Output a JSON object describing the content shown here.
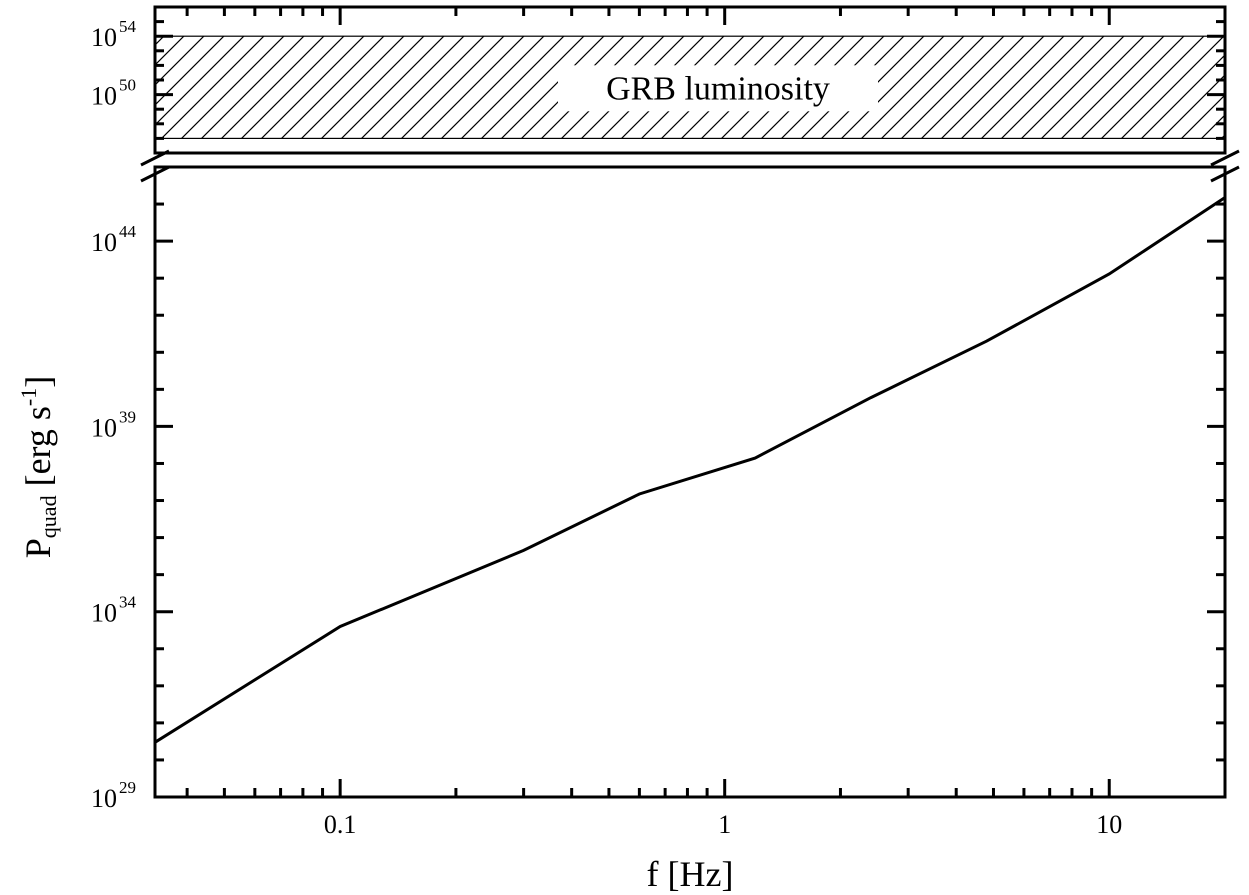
{
  "chart_data": {
    "type": "line",
    "xlabel": "f [Hz]",
    "ylabel": {
      "main": "P",
      "sub": "quad",
      "unit_pre": "[erg s",
      "unit_sup": "-1",
      "unit_post": "]"
    },
    "x_scale": "log",
    "y_scale": "log",
    "xlim": [
      0.033,
      20
    ],
    "ylim_lower_panel": [
      1e+29,
      1e+46
    ],
    "ylim_upper_panel": [
      1e+46,
      1e+56
    ],
    "grid": false,
    "broken_y_axis": true,
    "x_ticks": [
      {
        "value": 0.1,
        "label": "0.1"
      },
      {
        "value": 1,
        "label": "1"
      },
      {
        "value": 10,
        "label": "10"
      }
    ],
    "y_ticks_lower": [
      {
        "value": 1e+29,
        "base": "10",
        "exp": "29"
      },
      {
        "value": 1e+34,
        "base": "10",
        "exp": "34"
      },
      {
        "value": 1e+39,
        "base": "10",
        "exp": "39"
      },
      {
        "value": 1e+44,
        "base": "10",
        "exp": "44"
      }
    ],
    "y_ticks_upper": [
      {
        "value": 1e+50,
        "base": "10",
        "exp": "50"
      },
      {
        "value": 1e+54,
        "base": "10",
        "exp": "54"
      }
    ],
    "series": [
      {
        "x": [
          0.033,
          0.1,
          0.3,
          0.6,
          1.2,
          2.4,
          4.8,
          10,
          20
        ],
        "y": [
          3e+30,
          4e+33,
          4.5e+35,
          1.5e+37,
          1.4e+38,
          6e+39,
          2e+41,
          1.3e+43,
          1.5e+45
        ]
      }
    ],
    "shaded_band": {
      "label": "GRB luminosity",
      "y_range": [
        1e+47,
        1e+54
      ],
      "pattern": "diagonal-hatch"
    },
    "colors": {
      "line": "#000000",
      "axis": "#000000",
      "hatch": "#000000",
      "background": "#ffffff"
    }
  }
}
